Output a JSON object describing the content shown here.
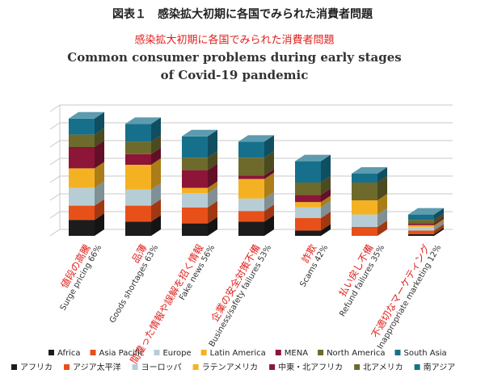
{
  "chart_data": {
    "type": "bar3d_stacked",
    "title": "図表１　感染拡大初期に各国でみられた消費者問題",
    "subtitle_ja": "感染拡大初期に各国でみられた消費者問題",
    "subtitle_en": "Common consumer problems during early stages of Covid-19 pandemic",
    "categories_ja": [
      "値段の高騰",
      "品薄",
      "間違った情報や誤解を招く情報",
      "企業の安全対策不備",
      "詐欺",
      "払い戻し不備",
      "不適切なマーケティング"
    ],
    "categories": [
      "Surge pricing 66%",
      "Goods shortages 63%",
      "Fake news 56%",
      "Business/safety failures 53%",
      "Scams 42%",
      "Refund failures 35%",
      "Inappropriate marketing 12%"
    ],
    "ylim": [
      0,
      70
    ],
    "yticks": [
      0,
      10,
      20,
      30,
      40,
      50,
      60,
      70
    ],
    "grid": true,
    "series": [
      {
        "name": "Africa",
        "name_ja": "アフリカ",
        "color": "#1c1c1c",
        "values": [
          9,
          8,
          7,
          8,
          3,
          0,
          1
        ]
      },
      {
        "name": "Asia Pacific",
        "name_ja": "アジア太平洋",
        "color": "#e8501a",
        "values": [
          8,
          9,
          9,
          6,
          7,
          5,
          2
        ]
      },
      {
        "name": "Europe",
        "name_ja": "ヨーロッパ",
        "color": "#b7cdd5",
        "values": [
          10,
          9,
          8,
          7,
          6,
          7,
          2
        ]
      },
      {
        "name": "Latin America",
        "name_ja": "ラテンアメリカ",
        "color": "#f4b223",
        "values": [
          11,
          14,
          3,
          11,
          3,
          8,
          1
        ]
      },
      {
        "name": "MENA",
        "name_ja": "中東・北アフリカ",
        "color": "#8c1538",
        "values": [
          12,
          6,
          10,
          2,
          4,
          0,
          1
        ]
      },
      {
        "name": "North America",
        "name_ja": "北アメリカ",
        "color": "#6d6a2c",
        "values": [
          7,
          7,
          7,
          10,
          7,
          10,
          2
        ]
      },
      {
        "name": "South Asia",
        "name_ja": "南アジア",
        "color": "#17708b",
        "values": [
          9,
          10,
          12,
          9,
          12,
          5,
          3
        ]
      }
    ]
  }
}
